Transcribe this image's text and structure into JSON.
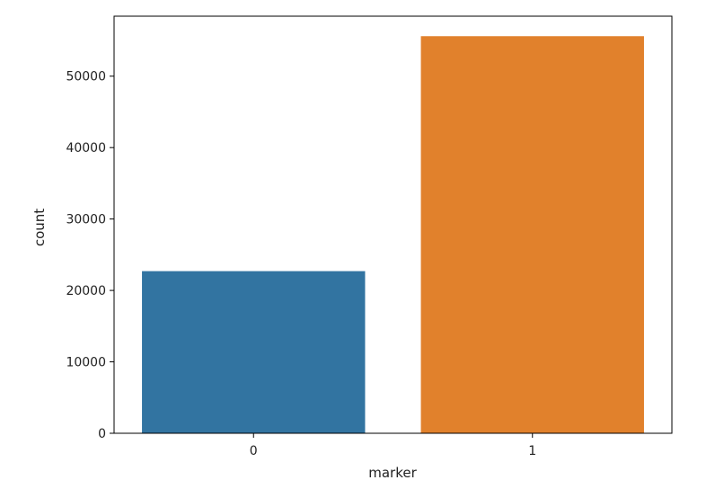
{
  "chart_data": {
    "type": "bar",
    "categories": [
      "0",
      "1"
    ],
    "values": [
      22700,
      55600
    ],
    "xlabel": "marker",
    "ylabel": "count",
    "ylim": [
      0,
      58400
    ],
    "yticks": [
      0,
      10000,
      20000,
      30000,
      40000,
      50000
    ],
    "ytick_labels": [
      "0",
      "10000",
      "20000",
      "30000",
      "40000",
      "50000"
    ],
    "colors": [
      "#3274a1",
      "#e1812c"
    ],
    "grid": false,
    "legend": "none"
  }
}
